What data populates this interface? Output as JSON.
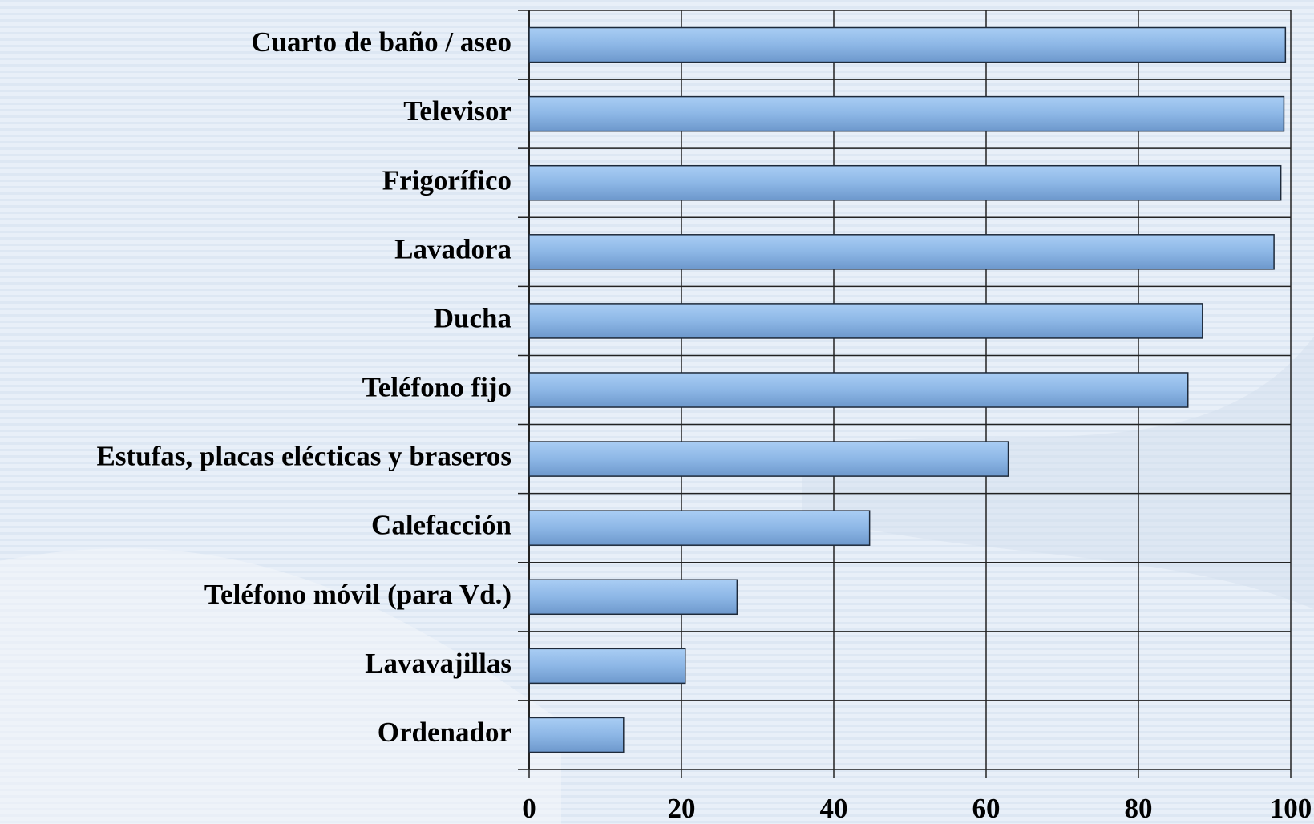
{
  "chart_data": {
    "type": "bar",
    "orientation": "horizontal",
    "categories": [
      "Cuarto de baño / aseo",
      "Televisor",
      "Frigorífico",
      "Lavadora",
      "Ducha",
      "Teléfono fijo",
      "Estufas, placas elécticas y braseros",
      "Calefacción",
      "Teléfono móvil (para Vd.)",
      "Lavavajillas",
      "Ordenador"
    ],
    "values": [
      99.3,
      99.1,
      98.7,
      97.8,
      88.4,
      86.5,
      62.9,
      44.7,
      27.3,
      20.5,
      12.4
    ],
    "color": "#8fb8e8",
    "xlim": [
      0,
      100
    ],
    "xticks": [
      0,
      20,
      40,
      60,
      80,
      100
    ],
    "grid": true
  }
}
